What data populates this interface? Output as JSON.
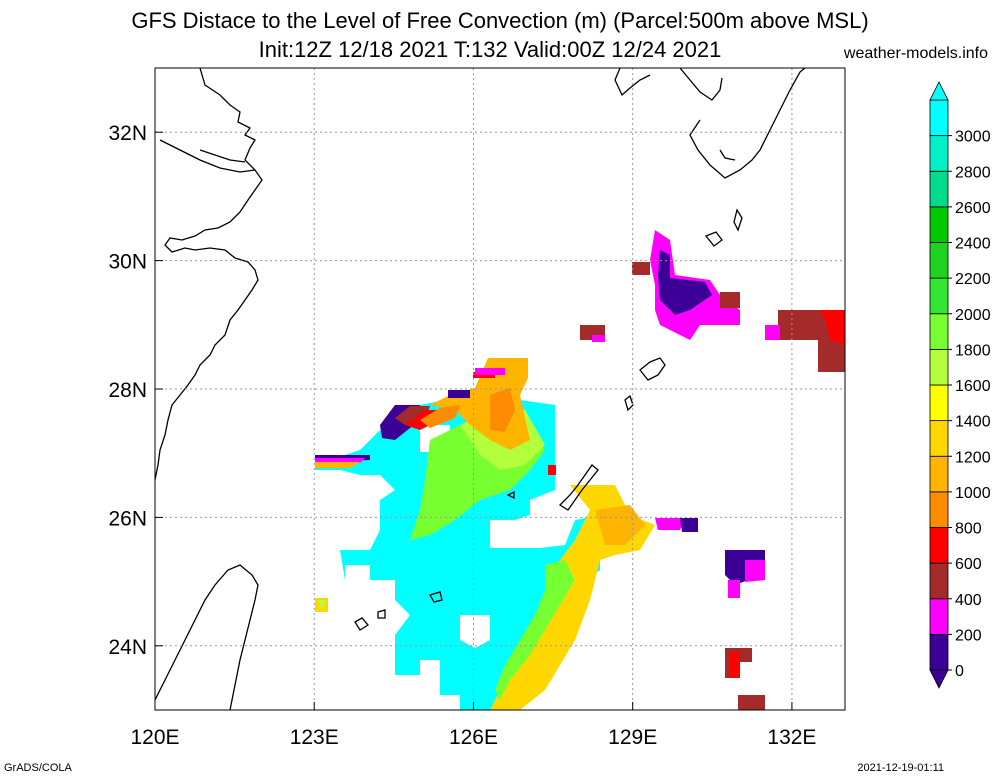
{
  "title_line1": "GFS Distace to the Level of Free Convection (m) (Parcel:500m above MSL)",
  "title_line2": "Init:12Z 12/18 2021 T:132 Valid:00Z 12/24 2021",
  "site": "weather-models.info",
  "footer_left": "GrADS/COLA",
  "footer_right": "2021-12-19-01:11",
  "map": {
    "lon_range": [
      120,
      133
    ],
    "lat_range": [
      23,
      33
    ],
    "lon_ticks": [
      {
        "value": 120,
        "label": "120E"
      },
      {
        "value": 123,
        "label": "123E"
      },
      {
        "value": 126,
        "label": "126E"
      },
      {
        "value": 129,
        "label": "129E"
      },
      {
        "value": 132,
        "label": "132E"
      }
    ],
    "lat_ticks": [
      {
        "value": 24,
        "label": "24N"
      },
      {
        "value": 26,
        "label": "26N"
      },
      {
        "value": 28,
        "label": "28N"
      },
      {
        "value": 30,
        "label": "30N"
      },
      {
        "value": 32,
        "label": "32N"
      }
    ],
    "grid": true
  },
  "colorbar": {
    "levels": [
      "0",
      "200",
      "400",
      "600",
      "800",
      "1000",
      "1200",
      "1400",
      "1600",
      "1800",
      "2000",
      "2200",
      "2400",
      "2600",
      "2800",
      "3000"
    ],
    "colors": [
      "#3c0096",
      "#ff00ff",
      "#a52a2a",
      "#ff0000",
      "#ff8c00",
      "#ffb400",
      "#ffd700",
      "#ffff00",
      "#b4ff3c",
      "#78ff32",
      "#32e632",
      "#1ed21e",
      "#00c800",
      "#00dc8c",
      "#00f0c8",
      "#00ffff"
    ],
    "low_color": "#3c0096",
    "high_color": "#00ffff"
  }
}
